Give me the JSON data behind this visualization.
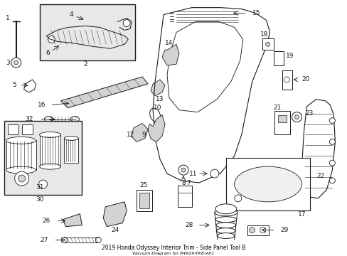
{
  "title": "2019 Honda Odyssey Interior Trim - Side Panel Tool B",
  "subtitle": "Vacuum Diagram for 84919-TK8-A01",
  "bg_color": "#ffffff",
  "line_color": "#1a1a1a",
  "gray_bg": "#e8e8e8",
  "figsize": [
    4.89,
    3.6
  ],
  "dpi": 100
}
